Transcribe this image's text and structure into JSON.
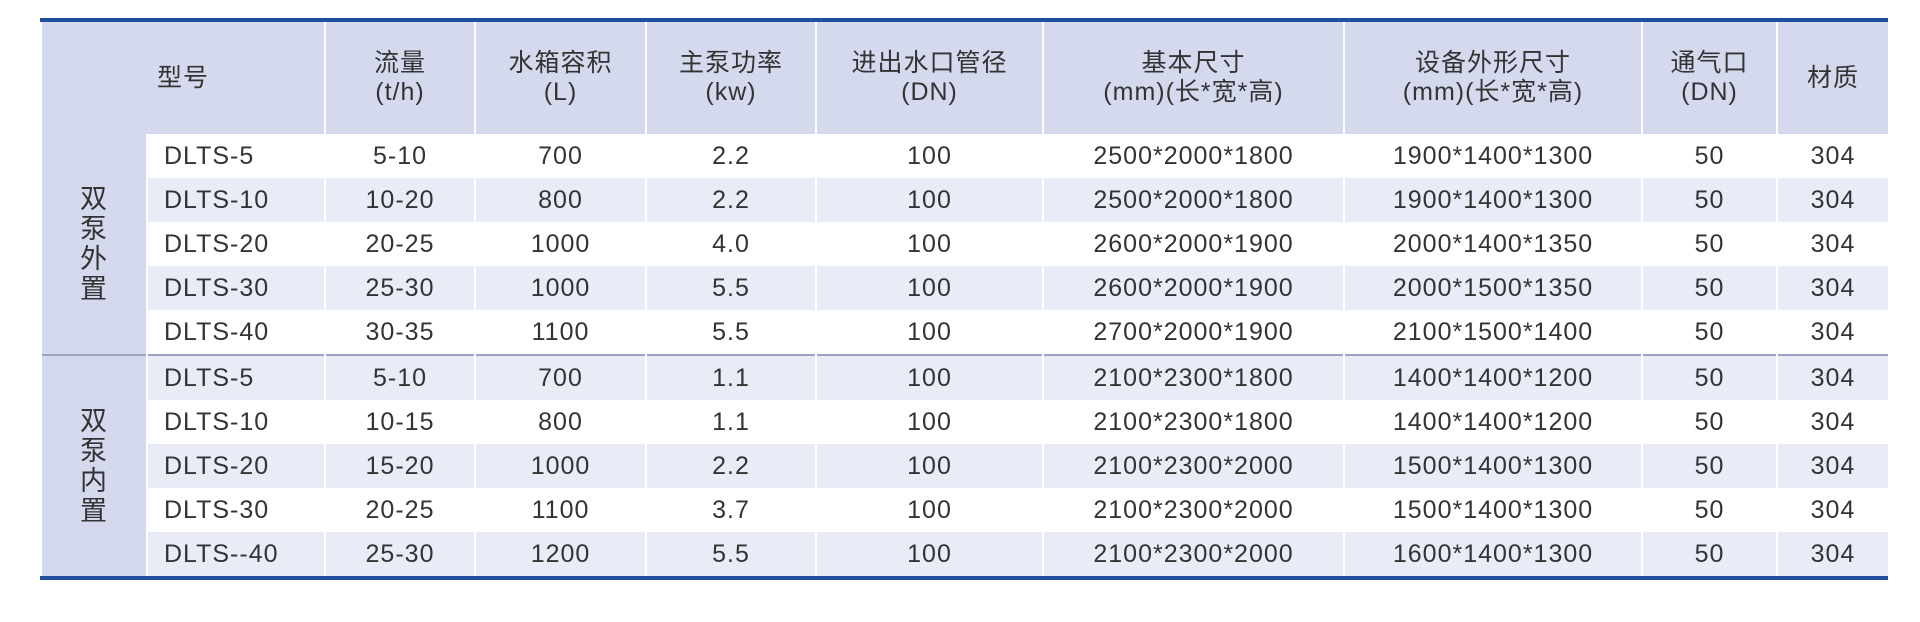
{
  "table": {
    "header": [
      [
        "型号"
      ],
      [
        "流量",
        "(t/h)"
      ],
      [
        "水箱容积",
        "(L)"
      ],
      [
        "主泵功率",
        "(kw)"
      ],
      [
        "进出水口管径",
        "(DN)"
      ],
      [
        "基本尺寸",
        "(mm)(长*宽*高)"
      ],
      [
        "设备外形尺寸",
        "(mm)(长*宽*高)"
      ],
      [
        "通气口",
        "(DN)"
      ],
      [
        "材质"
      ]
    ],
    "groups": [
      {
        "label": "双泵外置",
        "rows": [
          [
            "DLTS-5",
            "5-10",
            "700",
            "2.2",
            "100",
            "2500*2000*1800",
            "1900*1400*1300",
            "50",
            "304"
          ],
          [
            "DLTS-10",
            "10-20",
            "800",
            "2.2",
            "100",
            "2500*2000*1800",
            "1900*1400*1300",
            "50",
            "304"
          ],
          [
            "DLTS-20",
            "20-25",
            "1000",
            "4.0",
            "100",
            "2600*2000*1900",
            "2000*1400*1350",
            "50",
            "304"
          ],
          [
            "DLTS-30",
            "25-30",
            "1000",
            "5.5",
            "100",
            "2600*2000*1900",
            "2000*1500*1350",
            "50",
            "304"
          ],
          [
            "DLTS-40",
            "30-35",
            "1100",
            "5.5",
            "100",
            "2700*2000*1900",
            "2100*1500*1400",
            "50",
            "304"
          ]
        ]
      },
      {
        "label": "双泵内置",
        "rows": [
          [
            "DLTS-5",
            "5-10",
            "700",
            "1.1",
            "100",
            "2100*2300*1800",
            "1400*1400*1200",
            "50",
            "304"
          ],
          [
            "DLTS-10",
            "10-15",
            "800",
            "1.1",
            "100",
            "2100*2300*1800",
            "1400*1400*1200",
            "50",
            "304"
          ],
          [
            "DLTS-20",
            "15-20",
            "1000",
            "2.2",
            "100",
            "2100*2300*2000",
            "1500*1400*1300",
            "50",
            "304"
          ],
          [
            "DLTS-30",
            "20-25",
            "1100",
            "3.7",
            "100",
            "2100*2300*2000",
            "1500*1400*1300",
            "50",
            "304"
          ],
          [
            "DLTS--40",
            "25-30",
            "1200",
            "5.5",
            "100",
            "2100*2300*2000",
            "1600*1400*1300",
            "50",
            "304"
          ]
        ]
      }
    ]
  }
}
